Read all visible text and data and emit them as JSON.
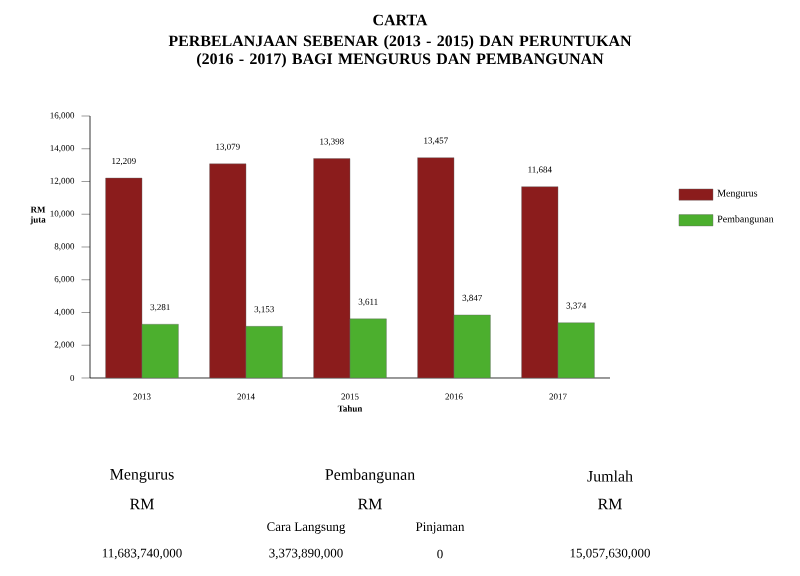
{
  "chart_data": {
    "type": "bar",
    "title": "CARTA",
    "subtitle": "PERBELANJAAN SEBENAR (2013 - 2015) DAN PERUNTUKAN (2016 - 2017) BAGI MENGURUS DAN PEMBANGUNAN",
    "xlabel": "Tahun",
    "ylabel": "RM juta",
    "categories": [
      "2013",
      "2014",
      "2015",
      "2016",
      "2017"
    ],
    "series": [
      {
        "name": "Mengurus",
        "color": "#8b1c1c",
        "values": [
          12209,
          13079,
          13398,
          13457,
          11684
        ],
        "value_labels": [
          "12,209",
          "13,079",
          "13,398",
          "13,457",
          "11,684"
        ]
      },
      {
        "name": "Pembangunan",
        "color": "#4caf2e",
        "values": [
          3281,
          3153,
          3611,
          3847,
          3374
        ],
        "value_labels": [
          "3,281",
          "3,153",
          "3,611",
          "3,847",
          "3,374"
        ]
      }
    ],
    "ylim": [
      0,
      16000
    ],
    "yticks": [
      {
        "value": 0,
        "label": "0"
      },
      {
        "value": 2000,
        "label": "2,000"
      },
      {
        "value": 4000,
        "label": "4,000"
      },
      {
        "value": 6000,
        "label": "6,000"
      },
      {
        "value": 8000,
        "label": "8,000"
      },
      {
        "value": 10000,
        "label": "10,000"
      },
      {
        "value": 12000,
        "label": "12,000"
      },
      {
        "value": 14000,
        "label": "14,000"
      },
      {
        "value": 16000,
        "label": "16,000"
      }
    ],
    "legend": "right",
    "grid": false,
    "annotations": [
      "Mengurus",
      "RM",
      "11,683,740,000",
      "Pembangunan",
      "RM",
      "Cara Langsung",
      "Pinjaman",
      "3,373,890,000",
      "0",
      "Jumlah",
      "RM",
      "15,057,630,000"
    ]
  }
}
